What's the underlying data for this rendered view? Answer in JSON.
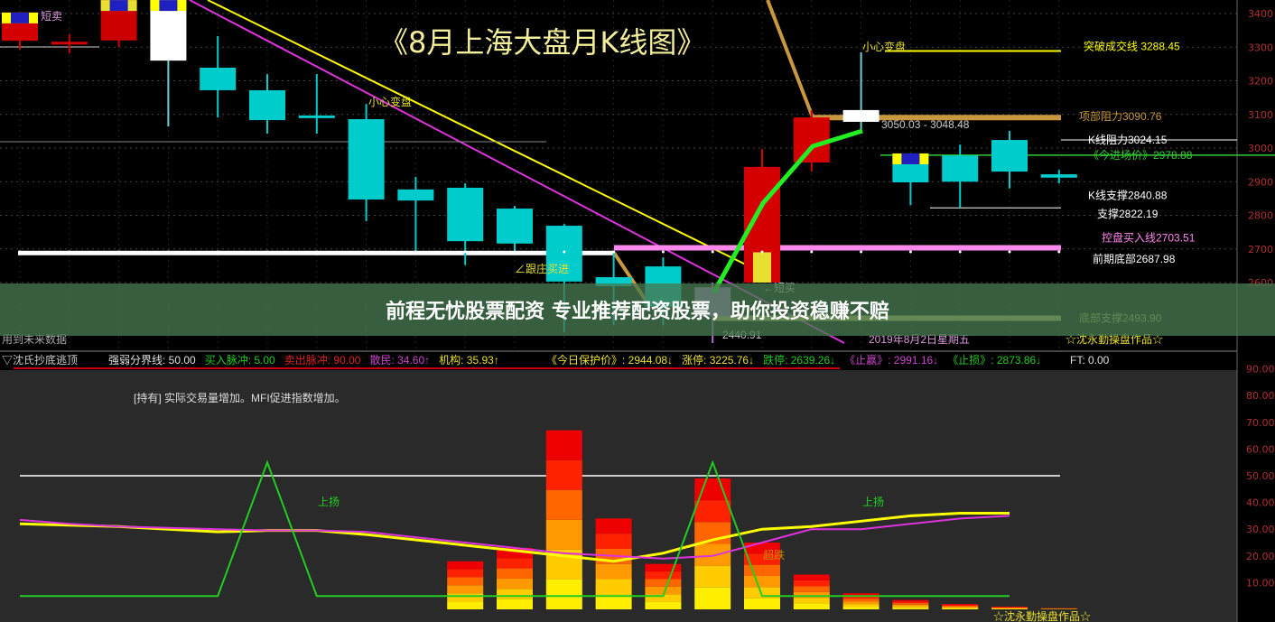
{
  "chart_data": [
    {
      "type": "candlestick",
      "title": "《8月上海大盘月K线图》",
      "ylim": [
        2400,
        3440
      ],
      "y_ticks": [
        "3400",
        "3300",
        "3200",
        "3100",
        "3000",
        "2900",
        "2800",
        "2700",
        "2600"
      ],
      "grid": true,
      "candles": [
        {
          "o": 3319,
          "c": 3403,
          "h": 3403,
          "l": 3293,
          "color": "#d40000",
          "cap": "#ffff00"
        },
        {
          "o": 3312,
          "c": 3316,
          "h": 3338,
          "l": 3282,
          "color": "#d40000"
        },
        {
          "o": 3320,
          "c": 3440,
          "h": 3440,
          "l": 3300,
          "color": "#cc0000",
          "cap": "#e8e030"
        },
        {
          "o": 3440,
          "c": 3260,
          "h": 3440,
          "l": 3064,
          "color": "#ffffff",
          "cap": "#ffff00"
        },
        {
          "o": 3239,
          "c": 3172,
          "h": 3333,
          "l": 3091,
          "color": "#00cccc"
        },
        {
          "o": 3172,
          "c": 3083,
          "h": 3220,
          "l": 3043,
          "color": "#00cccc"
        },
        {
          "o": 3097,
          "c": 3089,
          "h": 3220,
          "l": 3043,
          "color": "#00cccc"
        },
        {
          "o": 3086,
          "c": 2847,
          "h": 3131,
          "l": 2783,
          "color": "#00cccc"
        },
        {
          "o": 2877,
          "c": 2844,
          "h": 2914,
          "l": 2694,
          "color": "#00cccc"
        },
        {
          "o": 2882,
          "c": 2723,
          "h": 2895,
          "l": 2652,
          "color": "#00cccc"
        },
        {
          "o": 2820,
          "c": 2716,
          "h": 2828,
          "l": 2688,
          "color": "#00cccc"
        },
        {
          "o": 2769,
          "c": 2603,
          "h": 2774,
          "l": 2452,
          "color": "#00cccc"
        },
        {
          "o": 2616,
          "c": 2589,
          "h": 2688,
          "l": 2473,
          "color": "#00cccc"
        },
        {
          "o": 2648,
          "c": 2528,
          "h": 2675,
          "l": 2473,
          "color": "#00cccc"
        },
        {
          "o": 2500,
          "c": 2586,
          "h": 2600,
          "l": 2420,
          "color": "#b070d0"
        },
        {
          "o": 2600,
          "c": 2944,
          "h": 2997,
          "l": 2600,
          "color": "#d40000",
          "base": "#e8e030"
        },
        {
          "o": 2957,
          "c": 3091,
          "h": 3112,
          "l": 2930,
          "color": "#d40000"
        },
        {
          "o": 3078,
          "c": 3113,
          "h": 3285,
          "l": 3043,
          "color": "#ffffff"
        },
        {
          "o": 2984,
          "c": 2898,
          "h": 2984,
          "l": 2830,
          "color": "#00cccc",
          "cap": "#ffff00"
        },
        {
          "o": 2978,
          "c": 2900,
          "h": 3010,
          "l": 2822,
          "color": "#00cccc"
        },
        {
          "o": 3024,
          "c": 2930,
          "h": 3051,
          "l": 2880,
          "color": "#00cccc"
        },
        {
          "o": 2922,
          "c": 2912,
          "h": 2935,
          "l": 2895,
          "color": "#00cccc"
        }
      ],
      "levels": [
        {
          "label": "突破成交线 3288.45",
          "value": 3288.45,
          "color": "#ffff00"
        },
        {
          "label": "项部阻力3090.76",
          "value": 3090.76,
          "color": "#c89840"
        },
        {
          "label": "K线阻力3024.15",
          "value": 3024.15,
          "color": "#ffffff"
        },
        {
          "label": "《今进场价》2978.88",
          "value": 2978.88,
          "color": "#33cc33"
        },
        {
          "label": "K线支撑2840.88",
          "value": 2840.88,
          "color": "#ffffff"
        },
        {
          "label": "支撑2822.19",
          "value": 2822.19,
          "color": "#ffffff"
        },
        {
          "label": "控盘买入线2703.51",
          "value": 2703.51,
          "color": "#ff88ee"
        },
        {
          "label": "前期底部2687.98",
          "value": 2687.98,
          "color": "#ffffff"
        },
        {
          "label": "底部支撑2493.90",
          "value": 2493.9,
          "color": "#c8c060"
        }
      ],
      "annotations": [
        "短卖",
        "小心变盘",
        "小心变盘",
        "3050.03 - 3048.48",
        "∠跟庄买进",
        "←短买",
        "2440.91",
        "2019年8月2日星期五",
        "☆沈永勤操盘作品☆",
        "用到未来数据"
      ]
    },
    {
      "type": "bar+line",
      "ylim": [
        0,
        95
      ],
      "y_ticks": [
        "90.00",
        "80.00",
        "70.00",
        "60.00",
        "50.00",
        "40.00",
        "30.00",
        "20.00",
        "10.00"
      ],
      "bar_x_index": [
        9,
        10,
        11,
        12,
        13,
        14,
        15,
        16,
        17,
        18,
        19,
        20,
        21
      ],
      "bars": [
        18,
        23,
        67,
        34,
        17,
        49,
        25,
        13,
        6,
        3.5,
        2,
        1,
        0.5
      ],
      "series": [
        {
          "color": "#ffff00",
          "values": [
            32,
            31.5,
            31,
            30,
            29,
            29.5,
            29.5,
            28,
            26,
            24,
            22,
            20,
            18,
            21,
            26,
            30,
            31,
            33,
            35,
            36,
            36
          ]
        },
        {
          "color": "#dd33dd",
          "values": [
            33.5,
            32,
            31,
            30.5,
            30,
            29.5,
            29.5,
            29,
            27,
            25,
            23,
            21,
            20,
            19,
            20,
            25,
            30,
            30,
            32,
            34,
            35
          ]
        },
        {
          "color": "#22cc22",
          "values": [
            5,
            5,
            5,
            5,
            5,
            55,
            5,
            5,
            5,
            5,
            5,
            5,
            5,
            5,
            55,
            5,
            5,
            5,
            5,
            5,
            5
          ]
        }
      ],
      "threshold": 50,
      "annotations": [
        "上扬",
        "上扬",
        "超跌",
        "[持有] 实际交易量增加。MFI促进指数增加。",
        "☆沈永勤操盘作品☆"
      ]
    }
  ],
  "indicator_bar": {
    "name": "▽沈氏抄底逃顶",
    "items": [
      {
        "text": "强弱分界线: 50.00",
        "color": "#e0e0e0"
      },
      {
        "text": "买入脉冲: 5.00",
        "color": "#22cc22"
      },
      {
        "text": "卖出脉冲: 90.00",
        "color": "#dd2222"
      },
      {
        "text": "散民: 34.60↑",
        "color": "#cc44cc"
      },
      {
        "text": "机构: 35.93↑",
        "color": "#e8e030"
      },
      {
        "text": "《今日保护价》: 2944.08↓",
        "color": "#e8e030"
      },
      {
        "text": "涨停: 3225.76↓",
        "color": "#e8e030"
      },
      {
        "text": "跌停: 2639.26↓",
        "color": "#22cc22"
      },
      {
        "text": "《止赢》: 2991.16↓",
        "color": "#cc44cc"
      },
      {
        "text": "《止损》: 2873.86↓",
        "color": "#22cc22"
      },
      {
        "text": "FT: 0.00",
        "color": "#e0e0e0"
      }
    ]
  },
  "banner": "前程无忧股票配资 专业推荐配资股票，助你投资稳赚不赔"
}
